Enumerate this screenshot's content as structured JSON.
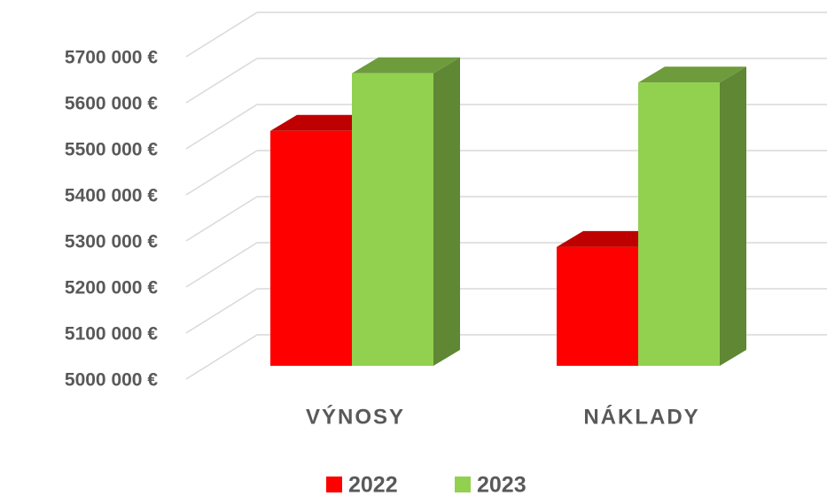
{
  "chart_data": {
    "type": "bar3d",
    "categories": [
      "VÝNOSY",
      "NÁKLADY"
    ],
    "series": [
      {
        "name": "2022",
        "color": "#ff0000",
        "values": [
          5510000,
          5258000
        ]
      },
      {
        "name": "2023",
        "color": "#92d050",
        "values": [
          5635000,
          5615000
        ]
      }
    ],
    "ylim": [
      5000000,
      5700000
    ],
    "yticks": [
      {
        "value": 5000000,
        "label": "5000 000 €"
      },
      {
        "value": 5100000,
        "label": "5100 000 €"
      },
      {
        "value": 5200000,
        "label": "5200 000 €"
      },
      {
        "value": 5300000,
        "label": "5300 000 €"
      },
      {
        "value": 5400000,
        "label": "5400 000 €"
      },
      {
        "value": 5500000,
        "label": "5500 000 €"
      },
      {
        "value": 5600000,
        "label": "5600 000 €"
      },
      {
        "value": 5700000,
        "label": "5700 000 €"
      }
    ],
    "grid": true,
    "legend": "bottom"
  }
}
